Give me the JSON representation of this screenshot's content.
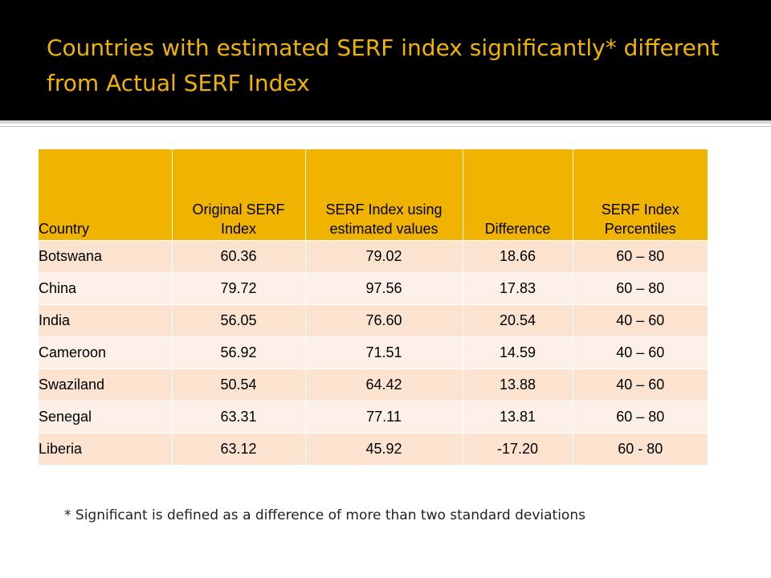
{
  "slide": {
    "title": "Countries with estimated SERF index significantly* different from Actual SERF Index",
    "footnote": "* Significant is defined as a difference of more than two standard deviations"
  },
  "table": {
    "headers": [
      "Country",
      "Original SERF Index",
      "SERF Index using estimated values",
      "Difference",
      "SERF Index Percentiles"
    ],
    "rows": [
      [
        "Botswana",
        "60.36",
        "79.02",
        "18.66",
        "60 – 80"
      ],
      [
        "China",
        "79.72",
        "97.56",
        "17.83",
        "60 – 80"
      ],
      [
        "India",
        "56.05",
        "76.60",
        "20.54",
        "40 – 60"
      ],
      [
        "Cameroon",
        "56.92",
        "71.51",
        "14.59",
        "40 – 60"
      ],
      [
        "Swaziland",
        "50.54",
        "64.42",
        "13.88",
        "40 – 60"
      ],
      [
        "Senegal",
        "63.31",
        "77.11",
        "13.81",
        "60 – 80"
      ],
      [
        "Liberia",
        "63.12",
        "45.92",
        "-17.20",
        "60 - 80"
      ]
    ]
  },
  "colors": {
    "title_bar": "#000000",
    "title_text": "#f0b400",
    "header_fill": "#f0b400",
    "row_odd": "#fbe3cf",
    "row_even": "#fdf0e8"
  }
}
